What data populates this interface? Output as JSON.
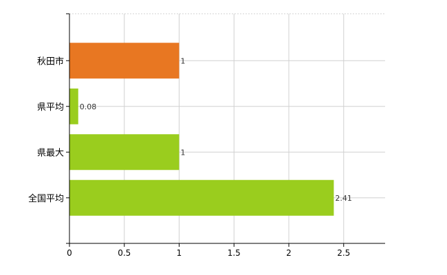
{
  "chart_data": {
    "type": "bar",
    "orientation": "horizontal",
    "categories": [
      "秋田市",
      "県平均",
      "県最大",
      "全国平均"
    ],
    "values": [
      1,
      0.08,
      1,
      2.41
    ],
    "data_labels": [
      "1",
      "0.08",
      "1",
      "2.41"
    ],
    "bar_colors": [
      "#e87722",
      "#9acd1e",
      "#9acd1e",
      "#9acd1e"
    ],
    "xlim": [
      0,
      2.875
    ],
    "xticks": [
      0,
      0.5,
      1,
      1.5,
      2,
      2.5
    ],
    "xtick_labels": [
      "0",
      "0.5",
      "1",
      "1.5",
      "2",
      "2.5"
    ],
    "grid": true,
    "legend": "none"
  }
}
